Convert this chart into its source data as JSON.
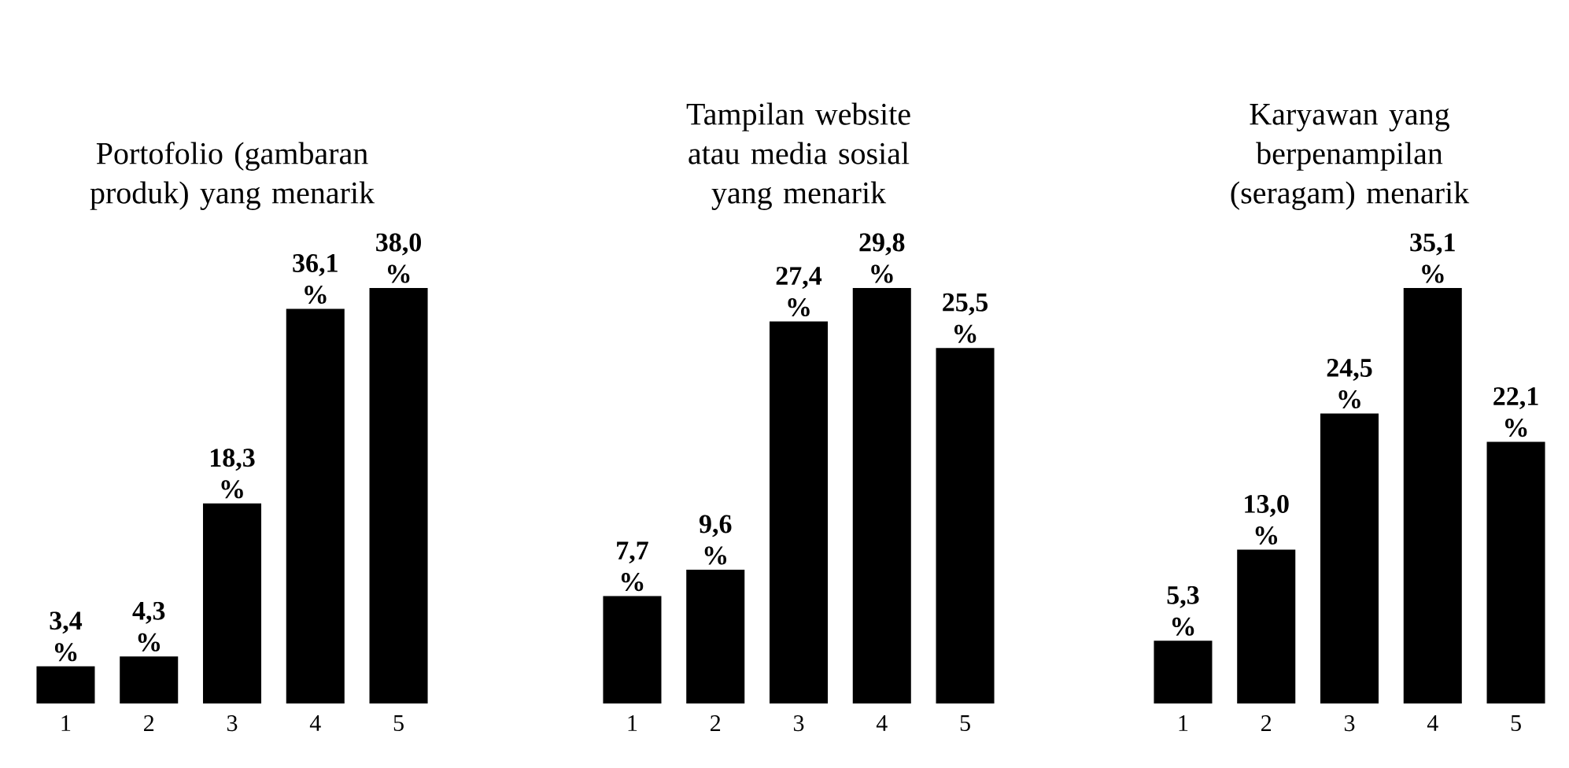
{
  "chart_data": [
    {
      "type": "bar",
      "title": "Portofolio (gambaran produk) yang menarik",
      "categories": [
        "1",
        "2",
        "3",
        "4",
        "5"
      ],
      "values": [
        3.4,
        4.3,
        18.3,
        36.1,
        38.0
      ],
      "value_labels": [
        "3,4 %",
        "4,3 %",
        "18,3 %",
        "36,1 %",
        "38,0 %"
      ],
      "color": "#000000"
    },
    {
      "type": "bar",
      "title": "Tampilan website atau media sosial yang menarik",
      "categories": [
        "1",
        "2",
        "3",
        "4",
        "5"
      ],
      "values": [
        7.7,
        9.6,
        27.4,
        29.8,
        25.5
      ],
      "value_labels": [
        "7,7 %",
        "9,6 %",
        "27,4 %",
        "29,8 %",
        "25,5 %"
      ],
      "color": "#000000"
    },
    {
      "type": "bar",
      "title": "Karyawan yang berpenampilan (seragam) menarik",
      "categories": [
        "1",
        "2",
        "3",
        "4",
        "5"
      ],
      "values": [
        5.3,
        13.0,
        24.5,
        35.1,
        22.1
      ],
      "value_labels": [
        "5,3 %",
        "13,0 %",
        "24,5 %",
        "35,1 %",
        "22,1 %"
      ],
      "color": "#000000"
    }
  ]
}
